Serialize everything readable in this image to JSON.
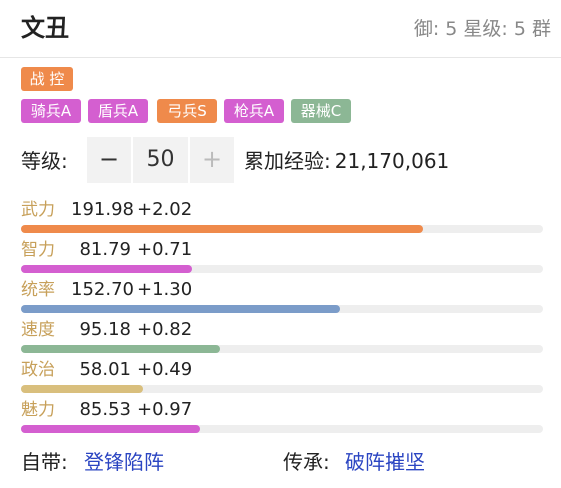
{
  "header": {
    "name": "文丑",
    "meta": "御: 5 星级: 5 群"
  },
  "tags": {
    "primary": "战 控",
    "aptitudes": [
      {
        "label": "骑兵A",
        "color": "#d45fd0"
      },
      {
        "label": "盾兵A",
        "color": "#d45fd0"
      },
      {
        "label": "弓兵S",
        "color": "#ef8a4b"
      },
      {
        "label": "枪兵A",
        "color": "#d45fd0"
      },
      {
        "label": "器械C",
        "color": "#8cb795"
      }
    ]
  },
  "level": {
    "label": "等级:",
    "minus": "−",
    "value": "50",
    "plus": "+",
    "exp_label": "累加经验:",
    "exp_value": "21,170,061"
  },
  "stats": [
    {
      "label": "武力",
      "value": "191.98",
      "bonus": "+2.02",
      "fraction": 0.77,
      "color": "#ef8a4b"
    },
    {
      "label": "智力",
      "value": "81.79",
      "bonus": "+0.71",
      "fraction": 0.327,
      "color": "#d45fd0"
    },
    {
      "label": "统率",
      "value": "152.70",
      "bonus": "+1.30",
      "fraction": 0.611,
      "color": "#7b9cc9"
    },
    {
      "label": "速度",
      "value": "95.18",
      "bonus": "+0.82",
      "fraction": 0.381,
      "color": "#8cb795"
    },
    {
      "label": "政治",
      "value": "58.01",
      "bonus": "+0.49",
      "fraction": 0.233,
      "color": "#d9bf7d"
    },
    {
      "label": "魅力",
      "value": "85.53",
      "bonus": "+0.97",
      "fraction": 0.342,
      "color": "#d45fd0"
    }
  ],
  "footer": {
    "innate_label": "自带:",
    "innate_skill": "登锋陷阵",
    "inherit_label": "传承:",
    "inherit_skill": "破阵摧坚"
  }
}
